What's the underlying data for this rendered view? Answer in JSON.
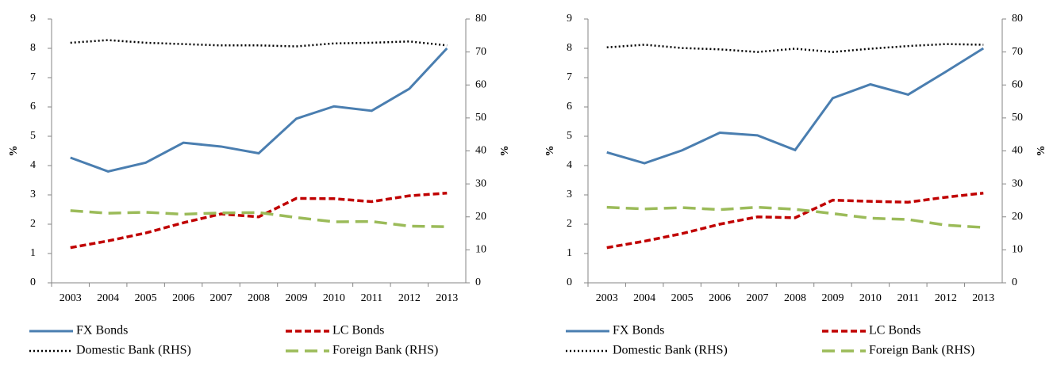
{
  "chart_data": [
    {
      "type": "line",
      "ylabel": "%",
      "y2label": "%",
      "categories": [
        "2003",
        "2004",
        "2005",
        "2006",
        "2007",
        "2008",
        "2009",
        "2010",
        "2011",
        "2012",
        "2013"
      ],
      "ylim": [
        0,
        9
      ],
      "yticks": [
        0,
        1,
        2,
        3,
        4,
        5,
        6,
        7,
        8,
        9
      ],
      "y2lim": [
        0,
        80
      ],
      "y2ticks": [
        0,
        10,
        20,
        30,
        40,
        50,
        60,
        70,
        80
      ],
      "legend": "bottom",
      "series": [
        {
          "name": "FX Bonds",
          "color": "#4a7eb0",
          "dash": "solid",
          "values": [
            4.27,
            3.8,
            4.1,
            4.78,
            4.65,
            4.42,
            5.6,
            6.02,
            5.87,
            6.62,
            8.0
          ]
        },
        {
          "name": "LC Bonds",
          "color": "#c00000",
          "dash": "dashed",
          "values": [
            1.2,
            1.43,
            1.7,
            2.05,
            2.35,
            2.25,
            2.88,
            2.87,
            2.77,
            2.97,
            3.06
          ]
        },
        {
          "name": "Domestic Bank (RHS)",
          "color": "#000000",
          "dash": "dotted",
          "axis": "y2",
          "values": [
            72.8,
            73.6,
            72.8,
            72.4,
            72.0,
            72.0,
            71.7,
            72.6,
            72.8,
            73.2,
            72.0
          ]
        },
        {
          "name": "Foreign Bank (RHS)",
          "color": "#9bbb59",
          "dash": "long-dashed",
          "axis": "y2",
          "values": [
            21.9,
            21.1,
            21.4,
            20.8,
            21.2,
            21.3,
            19.8,
            18.5,
            18.6,
            17.2,
            17.0
          ]
        }
      ]
    },
    {
      "type": "line",
      "ylabel": "%",
      "y2label": "%",
      "categories": [
        "2003",
        "2004",
        "2005",
        "2006",
        "2007",
        "2008",
        "2009",
        "2010",
        "2011",
        "2012",
        "2013"
      ],
      "ylim": [
        0,
        9
      ],
      "yticks": [
        0,
        1,
        2,
        3,
        4,
        5,
        6,
        7,
        8,
        9
      ],
      "y2lim": [
        0,
        80
      ],
      "y2ticks": [
        0,
        10,
        20,
        30,
        40,
        50,
        60,
        70,
        80
      ],
      "legend": "bottom",
      "series": [
        {
          "name": "FX Bonds",
          "color": "#4a7eb0",
          "dash": "solid",
          "values": [
            4.45,
            4.08,
            4.52,
            5.12,
            5.03,
            4.53,
            6.3,
            6.77,
            6.42,
            7.2,
            8.0
          ]
        },
        {
          "name": "LC Bonds",
          "color": "#c00000",
          "dash": "dashed",
          "values": [
            1.2,
            1.42,
            1.68,
            2.0,
            2.25,
            2.22,
            2.82,
            2.78,
            2.75,
            2.92,
            3.06
          ]
        },
        {
          "name": "Domestic Bank (RHS)",
          "color": "#000000",
          "dash": "dotted",
          "axis": "y2",
          "values": [
            71.4,
            72.2,
            71.2,
            70.8,
            70.0,
            71.0,
            70.0,
            71.0,
            71.8,
            72.4,
            72.2
          ]
        },
        {
          "name": "Foreign Bank (RHS)",
          "color": "#9bbb59",
          "dash": "long-dashed",
          "axis": "y2",
          "values": [
            22.9,
            22.4,
            22.8,
            22.2,
            22.9,
            22.3,
            21.0,
            19.6,
            19.2,
            17.5,
            16.8
          ]
        }
      ]
    }
  ]
}
